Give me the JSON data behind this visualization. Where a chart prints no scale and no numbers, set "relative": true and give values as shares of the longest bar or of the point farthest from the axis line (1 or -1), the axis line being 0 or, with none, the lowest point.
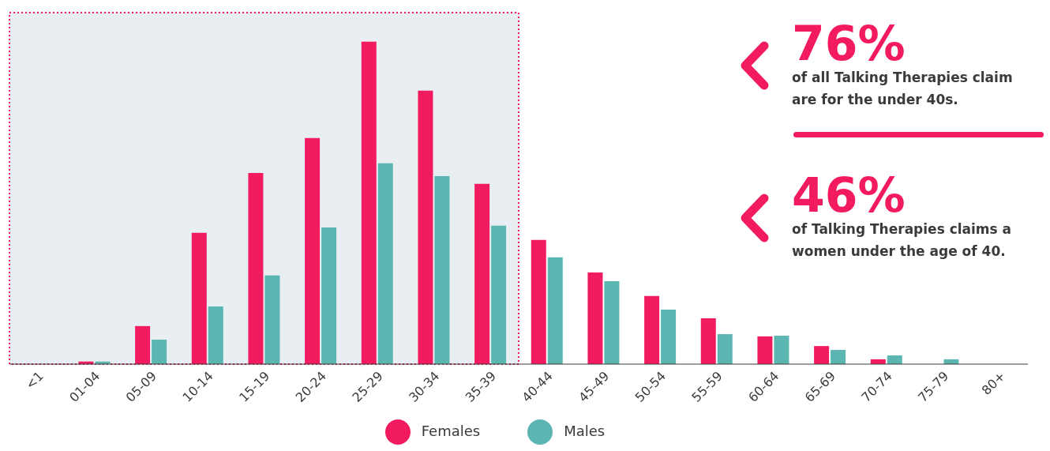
{
  "chart_data": {
    "type": "bar",
    "relative": true,
    "categories": [
      "<1",
      "01-04",
      "05-09",
      "10-14",
      "15-19",
      "20-24",
      "25-29",
      "30-34",
      "35-39",
      "40-44",
      "45-49",
      "50-54",
      "55-59",
      "60-64",
      "65-69",
      "70-74",
      "75-79",
      "80+"
    ],
    "series": [
      {
        "name": "Females",
        "color": "#f31b5f",
        "values": [
          0,
          0.008,
          0.118,
          0.407,
          0.593,
          0.701,
          1,
          0.848,
          0.559,
          0.385,
          0.284,
          0.211,
          0.142,
          0.086,
          0.056,
          0.015,
          0,
          0
        ]
      },
      {
        "name": "Males",
        "color": "#5bb6b2",
        "values": [
          0,
          0.008,
          0.076,
          0.179,
          0.275,
          0.424,
          0.623,
          0.583,
          0.429,
          0.331,
          0.257,
          0.169,
          0.093,
          0.088,
          0.044,
          0.027,
          0.015,
          0
        ]
      }
    ],
    "bands": [
      {
        "axis": "x",
        "from": "<1",
        "to": "35-39",
        "color": "#e9eef3"
      }
    ],
    "annotations": [
      "76%",
      "of all Talking Therapies claim",
      "are for the under 40s.",
      "46%",
      "of Talking Therapies claims a",
      "women under the age of 40."
    ],
    "legend": "bottom"
  }
}
